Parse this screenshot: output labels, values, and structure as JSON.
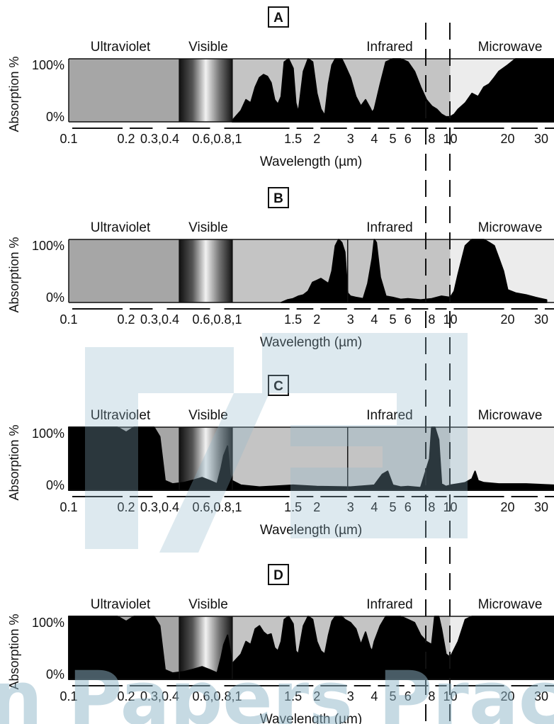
{
  "watermark": {
    "text": "n Papers Prac"
  },
  "chart_data": [
    {
      "type": "area",
      "panel": "A",
      "xlabel": "Wavelength  (µm)",
      "ylabel": "Absorption %",
      "xscale": "log",
      "xlim": [
        0.1,
        35
      ],
      "ylim": [
        0,
        100
      ],
      "ytick_labels": [
        "100%",
        "0%"
      ],
      "xtick_labels": [
        "0.1",
        "0.2",
        "0.3,0.4",
        "0.6,0.8,1",
        "1.5",
        "2",
        "3",
        "4",
        "5",
        "6",
        "8",
        "10",
        "20",
        "30"
      ],
      "regions": [
        {
          "label": "Ultraviolet",
          "x": [
            0.1,
            0.38
          ],
          "color": "#a6a6a6"
        },
        {
          "label": "Visible",
          "x": [
            0.38,
            0.72
          ],
          "color": "gradient"
        },
        {
          "label": "Infrared",
          "x": [
            0.72,
            10
          ],
          "color": "#c4c4c4"
        },
        {
          "label": "Microwave",
          "x": [
            10,
            35
          ],
          "color": "#ececec"
        }
      ],
      "x": [
        0.72,
        0.8,
        0.85,
        0.9,
        0.95,
        1.0,
        1.05,
        1.1,
        1.15,
        1.2,
        1.25,
        1.3,
        1.35,
        1.42,
        1.5,
        1.55,
        1.6,
        1.7,
        1.8,
        1.9,
        2.0,
        2.1,
        2.2,
        2.3,
        2.4,
        2.5,
        2.6,
        2.7,
        2.8,
        3.0,
        3.2,
        3.4,
        3.6,
        3.8,
        3.9,
        4.0,
        4.3,
        4.6,
        5.0,
        5.5,
        6.0,
        6.5,
        7.0,
        7.5,
        8.0,
        8.5,
        9.0,
        9.5,
        10.0,
        10.5,
        11.0,
        12.0,
        13.0,
        14.0,
        15.0,
        16.0,
        17.0,
        18.0,
        20.0,
        22.0,
        25.0,
        30.0,
        35.0
      ],
      "y": [
        2,
        18,
        35,
        30,
        55,
        70,
        75,
        72,
        62,
        35,
        28,
        40,
        95,
        100,
        85,
        30,
        15,
        80,
        100,
        95,
        45,
        20,
        10,
        60,
        90,
        100,
        100,
        100,
        90,
        70,
        40,
        25,
        35,
        22,
        15,
        20,
        60,
        95,
        100,
        100,
        95,
        80,
        55,
        35,
        25,
        20,
        12,
        8,
        8,
        12,
        20,
        30,
        45,
        40,
        55,
        60,
        70,
        80,
        90,
        100,
        100,
        100,
        100
      ]
    },
    {
      "type": "area",
      "panel": "B",
      "xlabel": "Wavelength  (µm)",
      "ylabel": "Absorption %",
      "xscale": "log",
      "xlim": [
        0.1,
        35
      ],
      "ylim": [
        0,
        100
      ],
      "ytick_labels": [
        "100%",
        "0%"
      ],
      "xtick_labels": [
        "0.1",
        "0.2",
        "0.3,0.4",
        "0.6,0.8,1",
        "1.5",
        "2",
        "3",
        "4",
        "5",
        "6",
        "8",
        "10",
        "20",
        "30"
      ],
      "regions": [
        {
          "label": "Ultraviolet",
          "x": [
            0.1,
            0.38
          ],
          "color": "#a6a6a6"
        },
        {
          "label": "Visible",
          "x": [
            0.38,
            0.72
          ],
          "color": "gradient"
        },
        {
          "label": "Infrared",
          "x": [
            0.72,
            10
          ],
          "color": "#c4c4c4"
        },
        {
          "label": "Microwave",
          "x": [
            10,
            35
          ],
          "color": "#ececec"
        }
      ],
      "x": [
        1.3,
        1.4,
        1.5,
        1.6,
        1.7,
        1.8,
        1.9,
        2.0,
        2.1,
        2.3,
        2.4,
        2.5,
        2.6,
        2.7,
        2.8,
        2.9,
        3.0,
        3.2,
        3.5,
        3.7,
        3.9,
        4.0,
        4.1,
        4.3,
        4.6,
        5.0,
        5.5,
        6.0,
        7.0,
        8.0,
        9.0,
        10.0,
        10.5,
        11.0,
        12.0,
        13.0,
        14.0,
        15.0,
        16.0,
        17.0,
        18.0,
        19.0,
        20.0,
        22.0,
        25.0,
        28.0,
        30.0,
        32.0
      ],
      "y": [
        0,
        4,
        6,
        10,
        12,
        18,
        32,
        35,
        38,
        30,
        50,
        90,
        100,
        95,
        80,
        15,
        10,
        8,
        6,
        30,
        70,
        100,
        95,
        40,
        10,
        8,
        5,
        6,
        4,
        6,
        10,
        8,
        18,
        45,
        90,
        100,
        100,
        100,
        95,
        90,
        70,
        50,
        20,
        15,
        12,
        8,
        6,
        4
      ]
    },
    {
      "type": "area",
      "panel": "C",
      "xlabel": "Wavelength  (µm)",
      "ylabel": "Absorption %",
      "xscale": "log",
      "xlim": [
        0.1,
        35
      ],
      "ylim": [
        0,
        100
      ],
      "ytick_labels": [
        "100%",
        "0%"
      ],
      "xtick_labels": [
        "0.1",
        "0.2",
        "0.3,0.4",
        "0.6,0.8,1",
        "1.5",
        "2",
        "3",
        "4",
        "5",
        "6",
        "8",
        "10",
        "20",
        "30"
      ],
      "regions": [
        {
          "label": "Ultraviolet",
          "x": [
            0.1,
            0.38
          ],
          "color": "#a6a6a6"
        },
        {
          "label": "Visible",
          "x": [
            0.38,
            0.72
          ],
          "color": "gradient"
        },
        {
          "label": "Infrared",
          "x": [
            0.72,
            10
          ],
          "color": "#c4c4c4"
        },
        {
          "label": "Microwave",
          "x": [
            10,
            35
          ],
          "color": "#ececec"
        }
      ],
      "x": [
        0.1,
        0.15,
        0.18,
        0.2,
        0.22,
        0.25,
        0.28,
        0.3,
        0.32,
        0.35,
        0.4,
        0.45,
        0.5,
        0.55,
        0.6,
        0.63,
        0.65,
        0.68,
        0.7,
        0.72,
        0.8,
        1.0,
        1.5,
        2.0,
        3.0,
        4.0,
        4.4,
        4.7,
        5.0,
        5.5,
        6.0,
        7.0,
        7.8,
        8.0,
        8.3,
        8.7,
        9.0,
        9.5,
        10.0,
        11.0,
        12.0,
        13.0,
        13.5,
        14.0,
        15.0,
        18.0,
        25.0,
        35.0
      ],
      "y": [
        100,
        100,
        100,
        92,
        100,
        100,
        100,
        85,
        15,
        10,
        12,
        16,
        20,
        15,
        10,
        35,
        55,
        70,
        25,
        15,
        8,
        5,
        8,
        6,
        5,
        8,
        25,
        30,
        8,
        5,
        6,
        4,
        50,
        100,
        100,
        80,
        10,
        6,
        8,
        10,
        12,
        18,
        30,
        15,
        12,
        10,
        10,
        8
      ]
    },
    {
      "type": "area",
      "panel": "D",
      "xlabel": "Wavelength  (µm)",
      "ylabel": "Absorption %",
      "xscale": "log",
      "xlim": [
        0.1,
        35
      ],
      "ylim": [
        0,
        100
      ],
      "ytick_labels": [
        "100%",
        "0%"
      ],
      "xtick_labels": [
        "0.1",
        "0.2",
        "0.3,0.4",
        "0.6,0.8,1",
        "1.5",
        "2",
        "3",
        "4",
        "5",
        "6",
        "8",
        "10",
        "20",
        "30"
      ],
      "regions": [
        {
          "label": "Ultraviolet",
          "x": [
            0.1,
            0.38
          ],
          "color": "#a6a6a6"
        },
        {
          "label": "Visible",
          "x": [
            0.38,
            0.72
          ],
          "color": "gradient"
        },
        {
          "label": "Infrared",
          "x": [
            0.72,
            10
          ],
          "color": "#c4c4c4"
        },
        {
          "label": "Microwave",
          "x": [
            10,
            35
          ],
          "color": "#ececec"
        }
      ],
      "x": [
        0.1,
        0.15,
        0.18,
        0.2,
        0.22,
        0.25,
        0.28,
        0.3,
        0.32,
        0.35,
        0.4,
        0.45,
        0.5,
        0.55,
        0.6,
        0.63,
        0.65,
        0.68,
        0.72,
        0.8,
        0.85,
        0.9,
        0.95,
        1.0,
        1.05,
        1.1,
        1.15,
        1.2,
        1.25,
        1.3,
        1.35,
        1.42,
        1.5,
        1.55,
        1.6,
        1.7,
        1.8,
        1.9,
        2.0,
        2.1,
        2.2,
        2.3,
        2.4,
        2.5,
        2.6,
        2.7,
        2.8,
        3.0,
        3.2,
        3.4,
        3.6,
        3.8,
        3.9,
        4.0,
        4.3,
        4.6,
        5.0,
        5.5,
        6.0,
        6.5,
        7.0,
        7.5,
        8.0,
        8.3,
        8.7,
        9.0,
        9.5,
        10.0,
        11.0,
        12.0,
        13.0,
        14.0,
        15.0,
        16.0,
        18.0,
        20.0,
        25.0,
        30.0,
        35.0
      ],
      "y": [
        100,
        100,
        100,
        92,
        100,
        100,
        100,
        85,
        15,
        10,
        12,
        16,
        20,
        15,
        10,
        35,
        55,
        70,
        25,
        40,
        60,
        55,
        80,
        85,
        75,
        70,
        72,
        50,
        45,
        60,
        95,
        100,
        88,
        45,
        40,
        85,
        100,
        95,
        60,
        45,
        40,
        70,
        92,
        100,
        100,
        100,
        95,
        90,
        80,
        55,
        75,
        50,
        45,
        60,
        85,
        100,
        100,
        100,
        95,
        90,
        70,
        60,
        55,
        100,
        100,
        80,
        40,
        35,
        60,
        95,
        100,
        100,
        100,
        100,
        100,
        100,
        100,
        100,
        100
      ]
    }
  ]
}
